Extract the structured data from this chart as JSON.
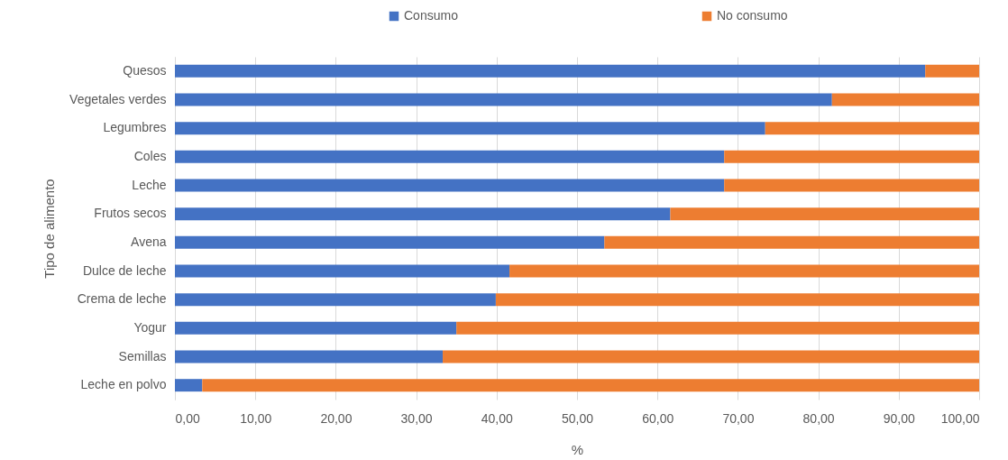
{
  "chart_data": {
    "type": "bar",
    "orientation": "horizontal",
    "stacked": true,
    "ylabel": "Tipo de alimento",
    "xlabel": "%",
    "categories": [
      "Quesos",
      "Vegetales verdes",
      "Legumbres",
      "Coles",
      "Leche",
      "Frutos secos",
      "Avena",
      "Dulce de leche",
      "Crema de leche",
      "Yogur",
      "Semillas",
      "Leche en polvo"
    ],
    "series": [
      {
        "name": "Consumo",
        "color": "#4472c4",
        "values": [
          93.3,
          81.7,
          73.4,
          68.3,
          68.3,
          61.6,
          53.4,
          41.6,
          39.9,
          35.0,
          33.3,
          3.4
        ]
      },
      {
        "name": "No consumo",
        "color": "#ed7d31",
        "values": [
          6.7,
          18.3,
          26.6,
          31.7,
          31.7,
          38.4,
          46.6,
          58.4,
          60.1,
          65.0,
          66.7,
          96.6
        ]
      }
    ],
    "xlim": [
      0,
      100
    ],
    "xticks": [
      {
        "value": 0,
        "label": "0,00"
      },
      {
        "value": 10,
        "label": "10,00"
      },
      {
        "value": 20,
        "label": "20,00"
      },
      {
        "value": 30,
        "label": "30,00"
      },
      {
        "value": 40,
        "label": "40,00"
      },
      {
        "value": 50,
        "label": "50,00"
      },
      {
        "value": 60,
        "label": "60,00"
      },
      {
        "value": 70,
        "label": "70,00"
      },
      {
        "value": 80,
        "label": "80,00"
      },
      {
        "value": 90,
        "label": "90,00"
      },
      {
        "value": 100,
        "label": "100,00"
      }
    ],
    "grid": "x",
    "legend": "top"
  }
}
